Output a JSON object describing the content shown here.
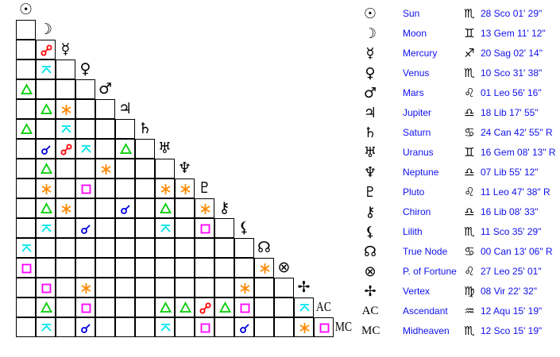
{
  "colors": {
    "conjunction": "#0000dd",
    "opposition": "#ff0000",
    "trine": "#00cc00",
    "square": "#ff00ff",
    "sextile": "#ff8800",
    "quincunx": "#00e5ee",
    "text": "#1010ee"
  },
  "planets": [
    {
      "name": "Sun",
      "glyph": "☉",
      "icon": "sun-icon",
      "sign": "♏",
      "sign_icon": "scorpio-icon",
      "position": "28 Sco 01' 29\""
    },
    {
      "name": "Moon",
      "glyph": "☽",
      "icon": "moon-icon",
      "sign": "♊",
      "sign_icon": "gemini-icon",
      "position": "13 Gem 11' 12\""
    },
    {
      "name": "Mercury",
      "glyph": "☿",
      "icon": "mercury-icon",
      "sign": "♐",
      "sign_icon": "sagittarius-icon",
      "position": "20 Sag 02' 14\""
    },
    {
      "name": "Venus",
      "glyph": "♀",
      "icon": "venus-icon",
      "sign": "♏",
      "sign_icon": "scorpio-icon",
      "position": "10 Sco 31' 38\""
    },
    {
      "name": "Mars",
      "glyph": "♂",
      "icon": "mars-icon",
      "sign": "♌",
      "sign_icon": "leo-icon",
      "position": "01 Leo 56' 16\""
    },
    {
      "name": "Jupiter",
      "glyph": "♃",
      "icon": "jupiter-icon",
      "sign": "♎",
      "sign_icon": "libra-icon",
      "position": "18 Lib 17' 55\""
    },
    {
      "name": "Saturn",
      "glyph": "♄",
      "icon": "saturn-icon",
      "sign": "♋",
      "sign_icon": "cancer-icon",
      "position": "24 Can 42' 55\" R"
    },
    {
      "name": "Uranus",
      "glyph": "♅",
      "icon": "uranus-icon",
      "sign": "♊",
      "sign_icon": "gemini-icon",
      "position": "16 Gem 08' 13\" R"
    },
    {
      "name": "Neptune",
      "glyph": "♆",
      "icon": "neptune-icon",
      "sign": "♎",
      "sign_icon": "libra-icon",
      "position": "07 Lib 55' 12\""
    },
    {
      "name": "Pluto",
      "glyph": "♇",
      "icon": "pluto-icon",
      "sign": "♌",
      "sign_icon": "leo-icon",
      "position": "11 Leo 47' 38\" R"
    },
    {
      "name": "Chiron",
      "glyph": "⚷",
      "icon": "chiron-icon",
      "sign": "♎",
      "sign_icon": "libra-icon",
      "position": "16 Lib 08' 33\""
    },
    {
      "name": "Lilith",
      "glyph": "⚸",
      "icon": "lilith-icon",
      "sign": "♏",
      "sign_icon": "scorpio-icon",
      "position": "11 Sco 35' 29\""
    },
    {
      "name": "True Node",
      "glyph": "☊",
      "icon": "true-node-icon",
      "sign": "♋",
      "sign_icon": "cancer-icon",
      "position": "00 Can 13' 06\" R"
    },
    {
      "name": "P. of Fortune",
      "glyph": "⊗",
      "icon": "part-of-fortune-icon",
      "sign": "♌",
      "sign_icon": "leo-icon",
      "position": "27 Leo 25' 01\""
    },
    {
      "name": "Vertex",
      "glyph": "✢",
      "icon": "vertex-icon",
      "sign": "♍",
      "sign_icon": "virgo-icon",
      "position": "08 Vir 22' 32\""
    },
    {
      "name": "Ascendant",
      "glyph": "AC",
      "icon": "ascendant-icon",
      "sign": "♒",
      "sign_icon": "aquarius-icon",
      "position": "12 Aqu 15' 19\""
    },
    {
      "name": "Midheaven",
      "glyph": "MC",
      "icon": "midheaven-icon",
      "sign": "♏",
      "sign_icon": "scorpio-icon",
      "position": "12 Sco 15' 19\""
    }
  ],
  "aspects": [
    [],
    [],
    [
      [
        1,
        "opposition"
      ]
    ],
    [
      [
        1,
        "quincunx"
      ]
    ],
    [
      [
        0,
        "trine"
      ]
    ],
    [
      [
        1,
        "trine"
      ],
      [
        2,
        "sextile"
      ]
    ],
    [
      [
        0,
        "trine"
      ],
      [
        2,
        "quincunx"
      ]
    ],
    [
      [
        1,
        "conjunction"
      ],
      [
        2,
        "opposition"
      ],
      [
        3,
        "quincunx"
      ],
      [
        5,
        "trine"
      ]
    ],
    [
      [
        1,
        "trine"
      ],
      [
        4,
        "sextile"
      ]
    ],
    [
      [
        1,
        "sextile"
      ],
      [
        3,
        "square"
      ],
      [
        7,
        "sextile"
      ],
      [
        8,
        "sextile"
      ]
    ],
    [
      [
        1,
        "trine"
      ],
      [
        2,
        "sextile"
      ],
      [
        5,
        "conjunction"
      ],
      [
        7,
        "trine"
      ],
      [
        9,
        "sextile"
      ]
    ],
    [
      [
        1,
        "quincunx"
      ],
      [
        3,
        "conjunction"
      ],
      [
        7,
        "quincunx"
      ],
      [
        9,
        "square"
      ]
    ],
    [
      [
        0,
        "quincunx"
      ]
    ],
    [
      [
        0,
        "square"
      ],
      [
        12,
        "sextile"
      ]
    ],
    [
      [
        1,
        "square"
      ],
      [
        3,
        "sextile"
      ],
      [
        11,
        "sextile"
      ]
    ],
    [
      [
        1,
        "trine"
      ],
      [
        3,
        "square"
      ],
      [
        7,
        "trine"
      ],
      [
        8,
        "trine"
      ],
      [
        9,
        "opposition"
      ],
      [
        10,
        "trine"
      ],
      [
        11,
        "square"
      ],
      [
        14,
        "quincunx"
      ]
    ],
    [
      [
        1,
        "quincunx"
      ],
      [
        3,
        "conjunction"
      ],
      [
        7,
        "quincunx"
      ],
      [
        9,
        "square"
      ],
      [
        11,
        "conjunction"
      ],
      [
        14,
        "sextile"
      ],
      [
        15,
        "square"
      ]
    ]
  ]
}
